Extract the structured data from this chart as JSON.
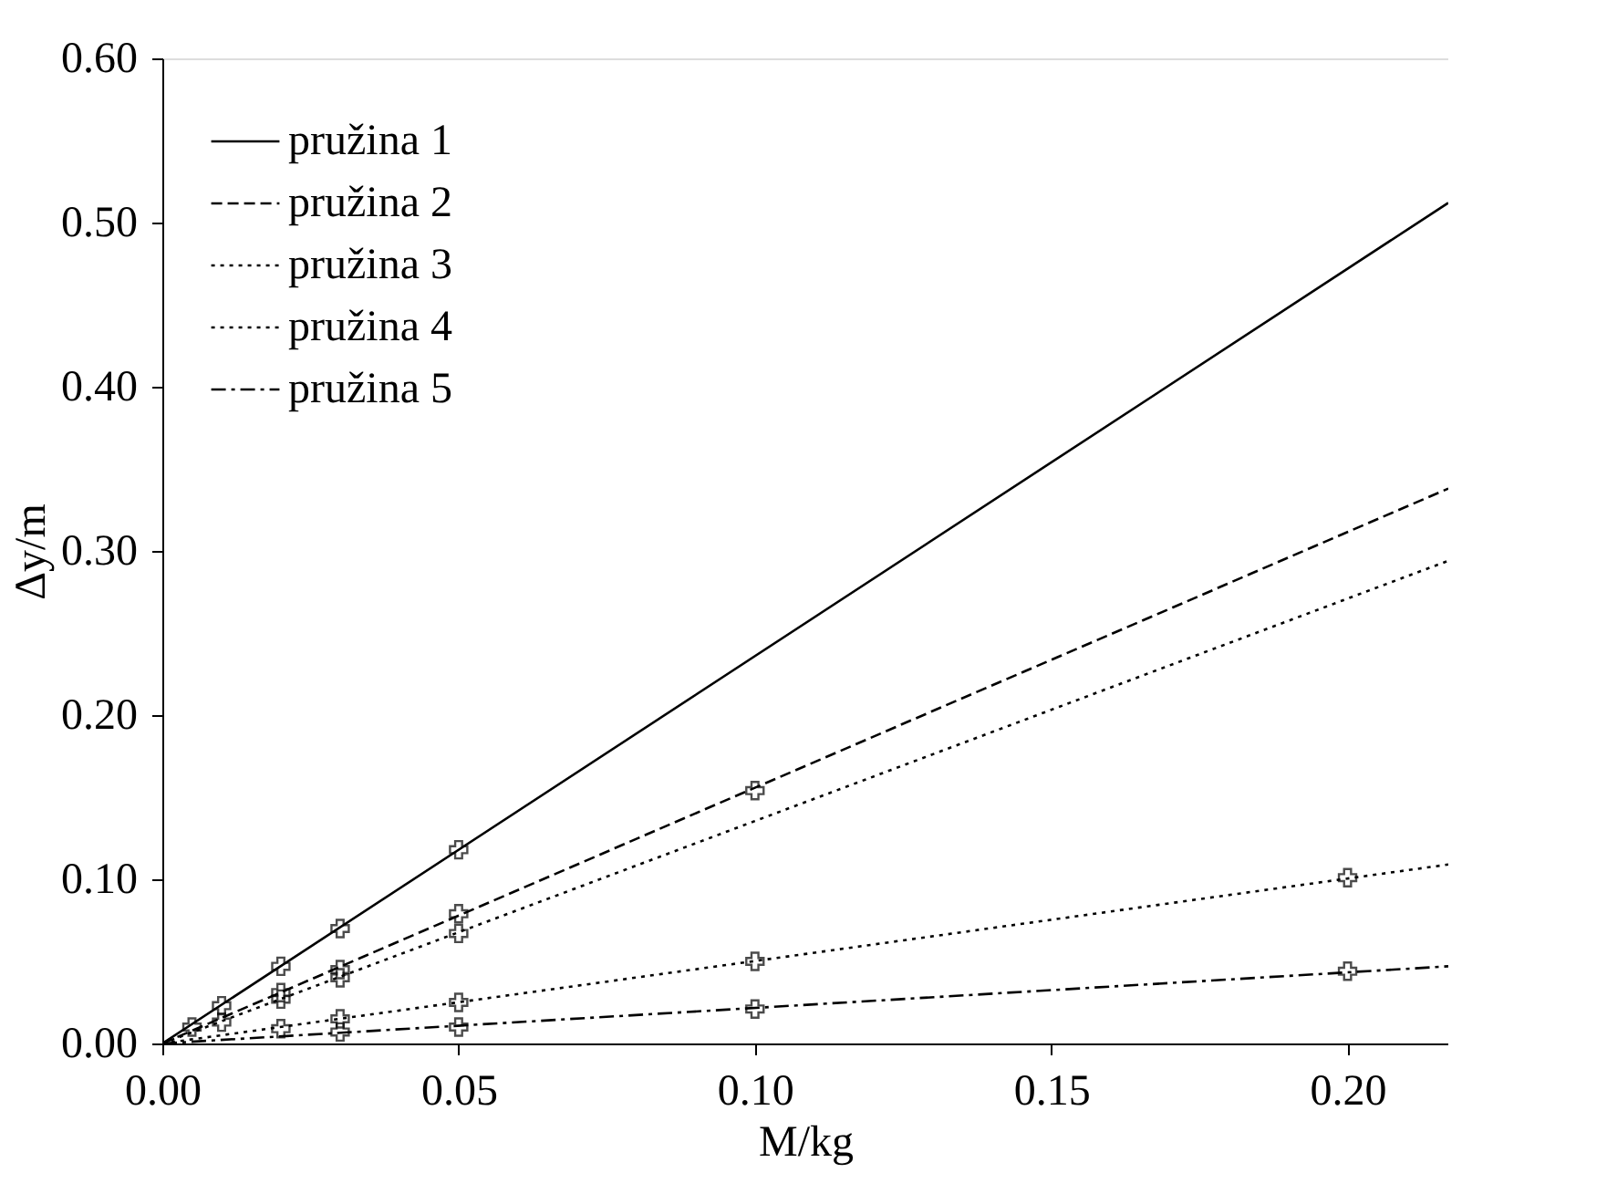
{
  "chart_data": {
    "type": "scatter",
    "xlabel": "M/kg",
    "ylabel": "Δy/m",
    "legend": "top left",
    "grid": false,
    "marker": "cross",
    "xlim": [
      0,
      0.217
    ],
    "ylim": [
      0,
      0.6
    ],
    "xticks": [
      {
        "value": 0,
        "label": "0.00"
      },
      {
        "value": 0.05,
        "label": "0.05"
      },
      {
        "value": 0.1,
        "label": "0.10"
      },
      {
        "value": 0.15,
        "label": "0.15"
      },
      {
        "value": 0.2,
        "label": "0.20"
      }
    ],
    "yticks": [
      {
        "value": 0,
        "label": "0.00"
      },
      {
        "value": 0.1,
        "label": "0.10"
      },
      {
        "value": 0.2,
        "label": "0.20"
      },
      {
        "value": 0.3,
        "label": "0.30"
      },
      {
        "value": 0.4,
        "label": "0.40"
      },
      {
        "value": 0.5,
        "label": "0.50"
      },
      {
        "value": 0.6,
        "label": "0.60"
      }
    ],
    "series": [
      {
        "name": "pružina 1",
        "type": "line",
        "color": "#000000",
        "line_style": "solid",
        "marker": "none",
        "x": [
          0,
          0.217
        ],
        "values": [
          0,
          0.512
        ]
      },
      {
        "name": "pružina 2",
        "type": "line",
        "color": "#000000",
        "line_style": "dashed",
        "marker": "none",
        "x": [
          0,
          0.217
        ],
        "values": [
          0,
          0.338
        ]
      },
      {
        "name": "pružina 3",
        "type": "line",
        "color": "#000000",
        "line_style": "dotted",
        "marker": "none",
        "x": [
          0,
          0.217
        ],
        "values": [
          0,
          0.294
        ]
      },
      {
        "name": "pružina 4",
        "type": "line",
        "color": "#000000",
        "line_style": "dotted",
        "marker": "none",
        "x": [
          0,
          0.217
        ],
        "values": [
          0,
          0.109
        ]
      },
      {
        "name": "pružina 5",
        "type": "line",
        "color": "#000000",
        "line_style": "dashdot",
        "marker": "none",
        "x": [
          0,
          0.217
        ],
        "values": [
          0,
          0.047
        ]
      },
      {
        "color": "#000000",
        "x": [
          0.01,
          0.02,
          0.03,
          0.05
        ],
        "values": [
          0.023,
          0.047,
          0.07,
          0.118
        ]
      },
      {
        "color": "#000000",
        "x": [
          0.005,
          0.01,
          0.02,
          0.03,
          0.05,
          0.1
        ],
        "values": [
          0.01,
          0.013,
          0.031,
          0.045,
          0.079,
          0.154
        ]
      },
      {
        "color": "#000000",
        "x": [
          0.02,
          0.03,
          0.05
        ],
        "values": [
          0.027,
          0.04,
          0.067
        ]
      },
      {
        "color": "#000000",
        "x": [
          0.02,
          0.03,
          0.05,
          0.1,
          0.2
        ],
        "values": [
          0.009,
          0.015,
          0.025,
          0.05,
          0.101
        ]
      },
      {
        "color": "#000000",
        "x": [
          0.03,
          0.05,
          0.1,
          0.2
        ],
        "values": [
          0.007,
          0.01,
          0.021,
          0.044
        ]
      }
    ]
  }
}
